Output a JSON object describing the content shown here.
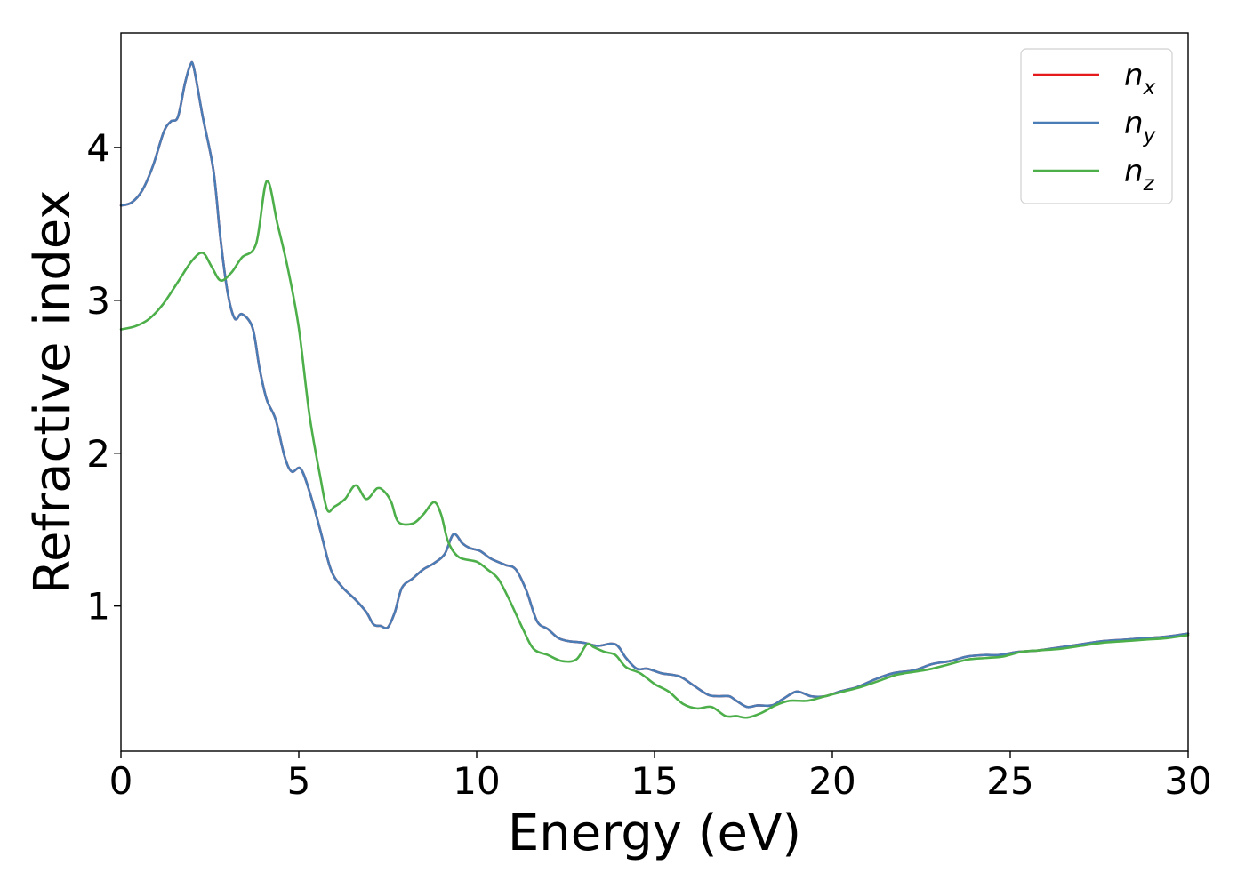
{
  "chart_data": {
    "type": "line",
    "title": "",
    "xlabel": "Energy (eV)",
    "ylabel": "Refractive index",
    "xlim": [
      0,
      30
    ],
    "ylim": [
      0.05,
      4.75
    ],
    "xticks": [
      0,
      5,
      10,
      15,
      20,
      25,
      30
    ],
    "xtick_labels": [
      "0",
      "5",
      "10",
      "15",
      "20",
      "25",
      "30"
    ],
    "yticks": [
      1,
      2,
      3,
      4
    ],
    "ytick_labels": [
      "1",
      "2",
      "3",
      "4"
    ],
    "grid": false,
    "legend_position": "top-right",
    "series": [
      {
        "name": "n_x",
        "legend_base": "n",
        "legend_sub": "x",
        "color": "#e41a1c",
        "points": [
          [
            0,
            3.62
          ],
          [
            0.3,
            3.64
          ],
          [
            0.6,
            3.72
          ],
          [
            0.9,
            3.88
          ],
          [
            1.2,
            4.1
          ],
          [
            1.4,
            4.17
          ],
          [
            1.6,
            4.2
          ],
          [
            1.8,
            4.42
          ],
          [
            1.95,
            4.54
          ],
          [
            2.05,
            4.52
          ],
          [
            2.3,
            4.2
          ],
          [
            2.6,
            3.85
          ],
          [
            2.8,
            3.4
          ],
          [
            3.0,
            3.05
          ],
          [
            3.2,
            2.88
          ],
          [
            3.4,
            2.91
          ],
          [
            3.7,
            2.82
          ],
          [
            3.9,
            2.55
          ],
          [
            4.1,
            2.35
          ],
          [
            4.35,
            2.22
          ],
          [
            4.6,
            1.98
          ],
          [
            4.8,
            1.88
          ],
          [
            5.05,
            1.9
          ],
          [
            5.3,
            1.75
          ],
          [
            5.6,
            1.5
          ],
          [
            5.9,
            1.24
          ],
          [
            6.2,
            1.13
          ],
          [
            6.6,
            1.04
          ],
          [
            6.9,
            0.96
          ],
          [
            7.1,
            0.88
          ],
          [
            7.3,
            0.87
          ],
          [
            7.5,
            0.86
          ],
          [
            7.7,
            0.96
          ],
          [
            7.9,
            1.12
          ],
          [
            8.2,
            1.18
          ],
          [
            8.5,
            1.24
          ],
          [
            8.8,
            1.28
          ],
          [
            9.1,
            1.34
          ],
          [
            9.35,
            1.47
          ],
          [
            9.6,
            1.41
          ],
          [
            9.8,
            1.38
          ],
          [
            10.1,
            1.36
          ],
          [
            10.4,
            1.31
          ],
          [
            10.8,
            1.27
          ],
          [
            11.1,
            1.24
          ],
          [
            11.4,
            1.1
          ],
          [
            11.7,
            0.9
          ],
          [
            12.0,
            0.85
          ],
          [
            12.3,
            0.79
          ],
          [
            12.6,
            0.77
          ],
          [
            13.0,
            0.76
          ],
          [
            13.4,
            0.74
          ],
          [
            13.9,
            0.75
          ],
          [
            14.2,
            0.66
          ],
          [
            14.5,
            0.59
          ],
          [
            14.8,
            0.59
          ],
          [
            15.2,
            0.56
          ],
          [
            15.7,
            0.54
          ],
          [
            16.1,
            0.48
          ],
          [
            16.5,
            0.42
          ],
          [
            16.8,
            0.41
          ],
          [
            17.1,
            0.41
          ],
          [
            17.3,
            0.38
          ],
          [
            17.6,
            0.34
          ],
          [
            17.9,
            0.35
          ],
          [
            18.3,
            0.35
          ],
          [
            18.6,
            0.39
          ],
          [
            19.0,
            0.44
          ],
          [
            19.4,
            0.41
          ],
          [
            19.8,
            0.41
          ],
          [
            20.2,
            0.44
          ],
          [
            20.7,
            0.47
          ],
          [
            21.2,
            0.52
          ],
          [
            21.7,
            0.56
          ],
          [
            22.3,
            0.58
          ],
          [
            22.8,
            0.62
          ],
          [
            23.3,
            0.64
          ],
          [
            23.8,
            0.67
          ],
          [
            24.3,
            0.68
          ],
          [
            24.7,
            0.68
          ],
          [
            25.2,
            0.7
          ],
          [
            25.8,
            0.71
          ],
          [
            26.4,
            0.73
          ],
          [
            27.0,
            0.75
          ],
          [
            27.6,
            0.77
          ],
          [
            28.2,
            0.78
          ],
          [
            28.8,
            0.79
          ],
          [
            29.4,
            0.8
          ],
          [
            30,
            0.82
          ]
        ]
      },
      {
        "name": "n_y",
        "legend_base": "n",
        "legend_sub": "y",
        "color": "#4a7db5",
        "points": [
          [
            0,
            3.62
          ],
          [
            0.3,
            3.64
          ],
          [
            0.6,
            3.72
          ],
          [
            0.9,
            3.88
          ],
          [
            1.2,
            4.1
          ],
          [
            1.4,
            4.17
          ],
          [
            1.6,
            4.2
          ],
          [
            1.8,
            4.42
          ],
          [
            1.95,
            4.54
          ],
          [
            2.05,
            4.52
          ],
          [
            2.3,
            4.2
          ],
          [
            2.6,
            3.85
          ],
          [
            2.8,
            3.4
          ],
          [
            3.0,
            3.05
          ],
          [
            3.2,
            2.88
          ],
          [
            3.4,
            2.91
          ],
          [
            3.7,
            2.82
          ],
          [
            3.9,
            2.55
          ],
          [
            4.1,
            2.35
          ],
          [
            4.35,
            2.22
          ],
          [
            4.6,
            1.98
          ],
          [
            4.8,
            1.88
          ],
          [
            5.05,
            1.9
          ],
          [
            5.3,
            1.75
          ],
          [
            5.6,
            1.5
          ],
          [
            5.9,
            1.24
          ],
          [
            6.2,
            1.13
          ],
          [
            6.6,
            1.04
          ],
          [
            6.9,
            0.96
          ],
          [
            7.1,
            0.88
          ],
          [
            7.3,
            0.87
          ],
          [
            7.5,
            0.86
          ],
          [
            7.7,
            0.96
          ],
          [
            7.9,
            1.12
          ],
          [
            8.2,
            1.18
          ],
          [
            8.5,
            1.24
          ],
          [
            8.8,
            1.28
          ],
          [
            9.1,
            1.34
          ],
          [
            9.35,
            1.47
          ],
          [
            9.6,
            1.41
          ],
          [
            9.8,
            1.38
          ],
          [
            10.1,
            1.36
          ],
          [
            10.4,
            1.31
          ],
          [
            10.8,
            1.27
          ],
          [
            11.1,
            1.24
          ],
          [
            11.4,
            1.1
          ],
          [
            11.7,
            0.9
          ],
          [
            12.0,
            0.85
          ],
          [
            12.3,
            0.79
          ],
          [
            12.6,
            0.77
          ],
          [
            13.0,
            0.76
          ],
          [
            13.4,
            0.74
          ],
          [
            13.9,
            0.75
          ],
          [
            14.2,
            0.66
          ],
          [
            14.5,
            0.59
          ],
          [
            14.8,
            0.59
          ],
          [
            15.2,
            0.56
          ],
          [
            15.7,
            0.54
          ],
          [
            16.1,
            0.48
          ],
          [
            16.5,
            0.42
          ],
          [
            16.8,
            0.41
          ],
          [
            17.1,
            0.41
          ],
          [
            17.3,
            0.38
          ],
          [
            17.6,
            0.34
          ],
          [
            17.9,
            0.35
          ],
          [
            18.3,
            0.35
          ],
          [
            18.6,
            0.39
          ],
          [
            19.0,
            0.44
          ],
          [
            19.4,
            0.41
          ],
          [
            19.8,
            0.41
          ],
          [
            20.2,
            0.44
          ],
          [
            20.7,
            0.47
          ],
          [
            21.2,
            0.52
          ],
          [
            21.7,
            0.56
          ],
          [
            22.3,
            0.58
          ],
          [
            22.8,
            0.62
          ],
          [
            23.3,
            0.64
          ],
          [
            23.8,
            0.67
          ],
          [
            24.3,
            0.68
          ],
          [
            24.7,
            0.68
          ],
          [
            25.2,
            0.7
          ],
          [
            25.8,
            0.71
          ],
          [
            26.4,
            0.73
          ],
          [
            27.0,
            0.75
          ],
          [
            27.6,
            0.77
          ],
          [
            28.2,
            0.78
          ],
          [
            28.8,
            0.79
          ],
          [
            29.4,
            0.8
          ],
          [
            30,
            0.82
          ]
        ]
      },
      {
        "name": "n_z",
        "legend_base": "n",
        "legend_sub": "z",
        "color": "#4daf4a",
        "points": [
          [
            0,
            2.81
          ],
          [
            0.4,
            2.83
          ],
          [
            0.8,
            2.88
          ],
          [
            1.2,
            2.98
          ],
          [
            1.6,
            3.12
          ],
          [
            2.0,
            3.26
          ],
          [
            2.3,
            3.31
          ],
          [
            2.55,
            3.22
          ],
          [
            2.8,
            3.13
          ],
          [
            3.1,
            3.18
          ],
          [
            3.4,
            3.28
          ],
          [
            3.8,
            3.37
          ],
          [
            4.1,
            3.78
          ],
          [
            4.4,
            3.5
          ],
          [
            4.7,
            3.2
          ],
          [
            5.0,
            2.82
          ],
          [
            5.3,
            2.25
          ],
          [
            5.6,
            1.85
          ],
          [
            5.8,
            1.63
          ],
          [
            6.0,
            1.65
          ],
          [
            6.3,
            1.7
          ],
          [
            6.6,
            1.79
          ],
          [
            6.9,
            1.7
          ],
          [
            7.2,
            1.77
          ],
          [
            7.4,
            1.75
          ],
          [
            7.6,
            1.68
          ],
          [
            7.8,
            1.55
          ],
          [
            8.2,
            1.54
          ],
          [
            8.5,
            1.6
          ],
          [
            8.8,
            1.68
          ],
          [
            9.0,
            1.6
          ],
          [
            9.2,
            1.42
          ],
          [
            9.5,
            1.32
          ],
          [
            10.0,
            1.29
          ],
          [
            10.3,
            1.24
          ],
          [
            10.6,
            1.18
          ],
          [
            10.9,
            1.05
          ],
          [
            11.3,
            0.85
          ],
          [
            11.6,
            0.72
          ],
          [
            12.0,
            0.68
          ],
          [
            12.4,
            0.64
          ],
          [
            12.8,
            0.65
          ],
          [
            13.1,
            0.75
          ],
          [
            13.3,
            0.73
          ],
          [
            13.6,
            0.7
          ],
          [
            13.9,
            0.68
          ],
          [
            14.2,
            0.6
          ],
          [
            14.6,
            0.56
          ],
          [
            15.0,
            0.49
          ],
          [
            15.4,
            0.44
          ],
          [
            15.8,
            0.36
          ],
          [
            16.2,
            0.33
          ],
          [
            16.6,
            0.34
          ],
          [
            17.0,
            0.28
          ],
          [
            17.3,
            0.28
          ],
          [
            17.6,
            0.27
          ],
          [
            18.0,
            0.3
          ],
          [
            18.4,
            0.35
          ],
          [
            18.8,
            0.38
          ],
          [
            19.3,
            0.38
          ],
          [
            19.8,
            0.41
          ],
          [
            20.3,
            0.44
          ],
          [
            20.8,
            0.47
          ],
          [
            21.3,
            0.51
          ],
          [
            21.8,
            0.55
          ],
          [
            22.3,
            0.57
          ],
          [
            22.8,
            0.59
          ],
          [
            23.3,
            0.62
          ],
          [
            23.8,
            0.65
          ],
          [
            24.3,
            0.66
          ],
          [
            24.8,
            0.67
          ],
          [
            25.3,
            0.7
          ],
          [
            25.8,
            0.71
          ],
          [
            26.4,
            0.72
          ],
          [
            27.0,
            0.74
          ],
          [
            27.6,
            0.76
          ],
          [
            28.2,
            0.77
          ],
          [
            28.8,
            0.78
          ],
          [
            29.4,
            0.79
          ],
          [
            30,
            0.81
          ]
        ]
      }
    ]
  }
}
